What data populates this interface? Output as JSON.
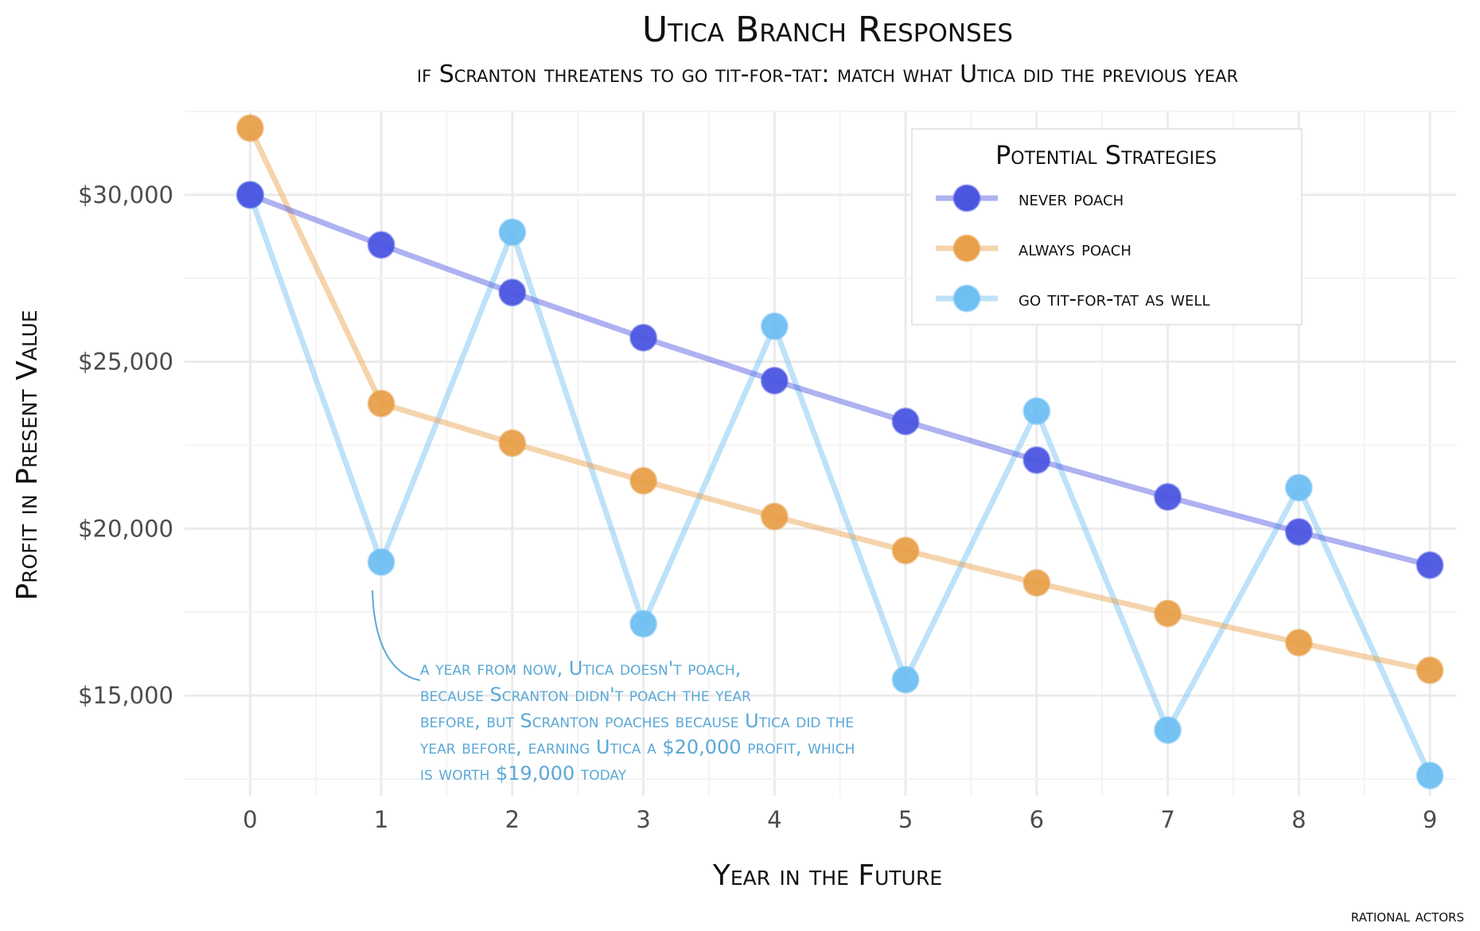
{
  "chart_data": {
    "type": "line",
    "title": "Utica Branch Responses",
    "subtitle": "if Scranton threatens to go tit-for-tat: match what Utica did the previous year",
    "xlabel": "Year in the Future",
    "ylabel": "Profit in Present Value",
    "caption": "rational actors",
    "x": [
      0,
      1,
      2,
      3,
      4,
      5,
      6,
      7,
      8,
      9
    ],
    "xlim": [
      -0.5,
      9.2
    ],
    "ylim": [
      12000,
      32500
    ],
    "yticks": [
      15000,
      20000,
      25000,
      30000
    ],
    "ytick_labels": [
      "$15,000",
      "$20,000",
      "$25,000",
      "$30,000"
    ],
    "grid": true,
    "legend": {
      "title": "Potential Strategies",
      "position": "top-right"
    },
    "series": [
      {
        "name": "never poach",
        "color": "#4b55e0",
        "values": [
          30000,
          28500,
          27075,
          25721,
          24435,
          23213,
          22053,
          20950,
          19903,
          18907
        ]
      },
      {
        "name": "always poach",
        "color": "#e8a04a",
        "values": [
          32000,
          23750,
          22563,
          21434,
          20363,
          19345,
          18377,
          17459,
          16586,
          15757
        ]
      },
      {
        "name": "go tit-for-tat as well",
        "color": "#6fbff2",
        "values": [
          30000,
          19000,
          28880,
          17148,
          26063,
          15476,
          23522,
          13968,
          21228,
          12606
        ]
      }
    ],
    "annotation": {
      "lines": [
        "a year from now, Utica doesn't poach,",
        "because Scranton didn't poach the year",
        "before, but Scranton poaches because Utica did the",
        "year before, earning Utica a $20,000 profit, which",
        "is worth $19,000 today"
      ],
      "color": "#5ba8d6",
      "points_to": {
        "x": 1,
        "y": 19000
      }
    }
  }
}
